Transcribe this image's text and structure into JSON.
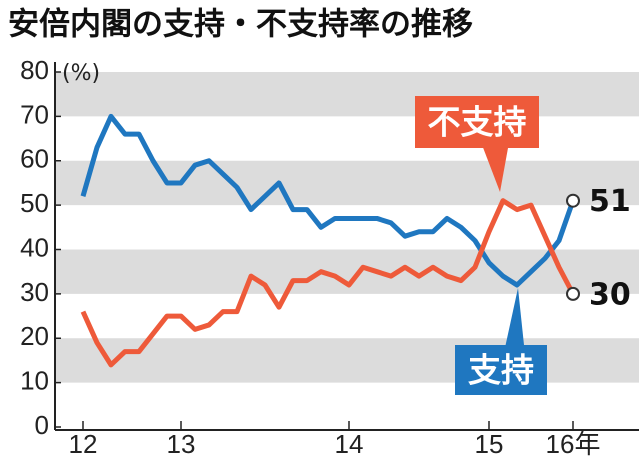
{
  "chart_data": {
    "type": "line",
    "title": "安倍内閣の支持・不支持率の推移",
    "y_unit": "(%)",
    "categories": [
      "12",
      null,
      null,
      null,
      null,
      null,
      null,
      "13",
      null,
      null,
      null,
      null,
      null,
      null,
      null,
      null,
      null,
      null,
      null,
      "14",
      null,
      null,
      null,
      null,
      null,
      null,
      null,
      null,
      null,
      "15",
      null,
      null,
      null,
      null,
      null,
      "16年"
    ],
    "series": [
      {
        "name": "支持",
        "color": "#1f77c0",
        "values": [
          52,
          63,
          70,
          66,
          66,
          60,
          55,
          55,
          59,
          60,
          57,
          54,
          49,
          52,
          55,
          49,
          49,
          45,
          47,
          47,
          47,
          47,
          46,
          43,
          44,
          44,
          47,
          45,
          42,
          37,
          34,
          32,
          35,
          38,
          42,
          51
        ]
      },
      {
        "name": "不支持",
        "color": "#ee5a3a",
        "values": [
          26,
          19,
          14,
          17,
          17,
          21,
          25,
          25,
          22,
          23,
          26,
          26,
          34,
          32,
          27,
          33,
          33,
          35,
          34,
          32,
          36,
          35,
          34,
          36,
          34,
          36,
          34,
          33,
          36,
          44,
          51,
          49,
          50,
          43,
          36,
          30
        ]
      }
    ],
    "ylim": [
      0,
      80
    ],
    "yticks": [
      0,
      10,
      20,
      30,
      40,
      50,
      60,
      70,
      80
    ],
    "bands": true
  }
}
